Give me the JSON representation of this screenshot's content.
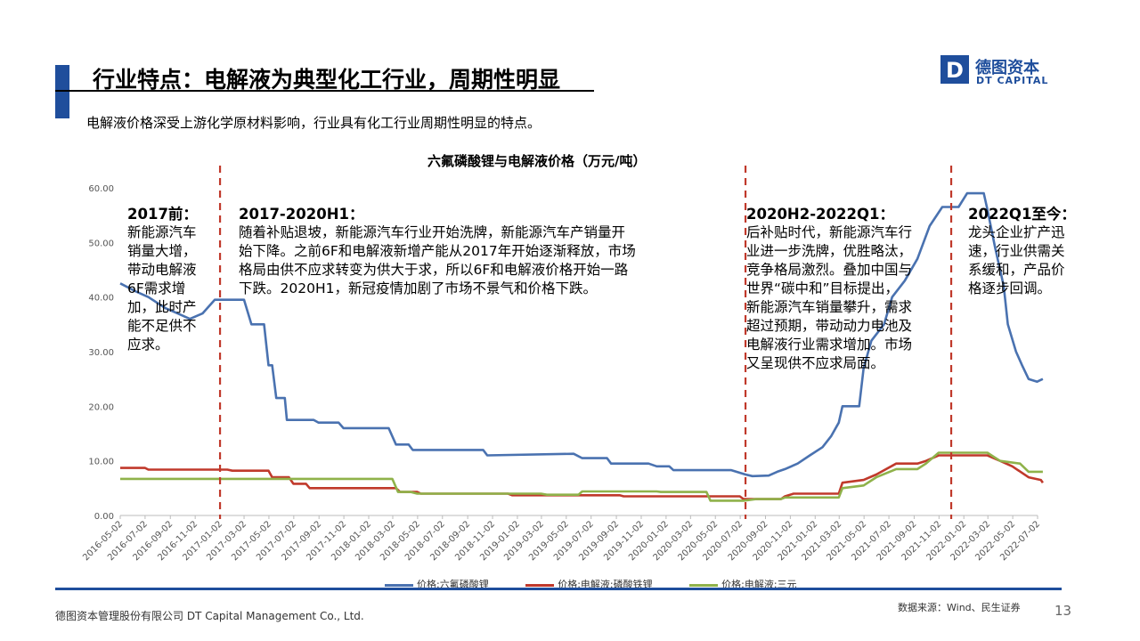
{
  "header": {
    "title": "行业特点：电解液为典型化工行业，周期性明显",
    "accent_color": "#1f4e9c"
  },
  "logo": {
    "mark_letter": "D",
    "name_cn": "德图资本",
    "name_en": "DT CAPITAL",
    "color": "#1f4e9c"
  },
  "subtitle": "电解液价格深受上游化学原材料影响，行业具有化工行业周期性明显的特点。",
  "annotations": [
    {
      "heading": "2017前：",
      "body": "新能源汽车\n销量大增，\n带动电解液\n6F需求增\n加，此时产\n能不足供不\n应求。"
    },
    {
      "heading": "2017-2020H1：",
      "body": "随着补贴退坡，新能源汽车行业开始洗牌，新能源汽车产销量开\n始下降。之前6F和电解液新增产能从2017年开始逐渐释放，市场\n格局由供不应求转变为供大于求，所以6F和电解液价格开始一路\n下跌。2020H1，新冠疫情加剧了市场不景气和价格下跌。"
    },
    {
      "heading": "2020H2-2022Q1：",
      "body": "后补贴时代，新能源汽车行\n业进一步洗牌，优胜略汰，\n竞争格局激烈。叠加中国与\n世界“碳中和”目标提出，\n新能源汽车销量攀升，需求\n超过预期，带动动力电池及\n电解液行业需求增加。市场\n又呈现供不应求局面。"
    },
    {
      "heading": "2022Q1至今：",
      "body": "龙头企业扩产迅\n速，行业供需关\n系缓和，产品价\n格逐步回调。"
    }
  ],
  "chart_data": {
    "type": "line",
    "title": "六氟磷酸锂与电解液价格（万元/吨）",
    "ylim": [
      0,
      60
    ],
    "y_ticks": [
      "0.00",
      "10.00",
      "20.00",
      "30.00",
      "40.00",
      "50.00",
      "60.00"
    ],
    "x_ticks": [
      "2016-05-02",
      "2016-07-02",
      "2016-09-02",
      "2016-11-02",
      "2017-01-02",
      "2017-03-02",
      "2017-05-02",
      "2017-07-02",
      "2017-09-02",
      "2017-11-02",
      "2018-01-02",
      "2018-03-02",
      "2018-05-02",
      "2018-07-02",
      "2018-09-02",
      "2018-11-02",
      "2019-01-02",
      "2019-03-02",
      "2019-05-02",
      "2019-07-02",
      "2019-09-02",
      "2019-11-02",
      "2020-01-02",
      "2020-03-02",
      "2020-05-02",
      "2020-07-02",
      "2020-09-02",
      "2020-11-02",
      "2021-01-02",
      "2021-03-02",
      "2021-05-02",
      "2021-07-02",
      "2021-09-02",
      "2021-11-02",
      "2022-01-02",
      "2022-03-02",
      "2022-05-02",
      "2022-07-02"
    ],
    "grid": false,
    "legend_position": "bottom",
    "divider_dates": [
      "2017-01-02",
      "2020-07-15",
      "2021-12-02"
    ],
    "divider_color": "#c0392b",
    "series": [
      {
        "name": "价格:六氟磷酸锂",
        "color": "#4a72b0",
        "points": [
          [
            "2016-05-02",
            42.5
          ],
          [
            "2016-06-10",
            41
          ],
          [
            "2016-07-10",
            40
          ],
          [
            "2016-08-20",
            38
          ],
          [
            "2016-09-20",
            37
          ],
          [
            "2016-10-20",
            36
          ],
          [
            "2016-11-20",
            37
          ],
          [
            "2016-12-20",
            39.5
          ],
          [
            "2017-03-02",
            39.5
          ],
          [
            "2017-03-20",
            35
          ],
          [
            "2017-04-20",
            35
          ],
          [
            "2017-05-01",
            27.5
          ],
          [
            "2017-05-10",
            27.5
          ],
          [
            "2017-05-20",
            21.5
          ],
          [
            "2017-06-10",
            21.5
          ],
          [
            "2017-06-15",
            17.5
          ],
          [
            "2017-08-20",
            17.5
          ],
          [
            "2017-09-01",
            17
          ],
          [
            "2017-10-20",
            17
          ],
          [
            "2017-11-01",
            16
          ],
          [
            "2018-02-20",
            16
          ],
          [
            "2018-03-10",
            13
          ],
          [
            "2018-04-10",
            13
          ],
          [
            "2018-04-20",
            12
          ],
          [
            "2018-10-10",
            12
          ],
          [
            "2018-10-20",
            11
          ],
          [
            "2019-05-20",
            11.3
          ],
          [
            "2019-06-10",
            10.5
          ],
          [
            "2019-08-10",
            10.5
          ],
          [
            "2019-08-20",
            9.5
          ],
          [
            "2019-11-20",
            9.5
          ],
          [
            "2019-12-10",
            9
          ],
          [
            "2020-01-10",
            9
          ],
          [
            "2020-01-20",
            8.3
          ],
          [
            "2020-06-10",
            8.3
          ],
          [
            "2020-07-15",
            7.5
          ],
          [
            "2020-08-01",
            7.2
          ],
          [
            "2020-09-10",
            7.3
          ],
          [
            "2020-10-01",
            8
          ],
          [
            "2020-10-20",
            8.5
          ],
          [
            "2020-11-20",
            9.5
          ],
          [
            "2020-12-20",
            11
          ],
          [
            "2021-01-20",
            12.5
          ],
          [
            "2021-02-10",
            14.5
          ],
          [
            "2021-03-01",
            17
          ],
          [
            "2021-03-10",
            20
          ],
          [
            "2021-04-20",
            20
          ],
          [
            "2021-05-01",
            27
          ],
          [
            "2021-05-20",
            32
          ],
          [
            "2021-06-20",
            35
          ],
          [
            "2021-07-10",
            40
          ],
          [
            "2021-08-10",
            43
          ],
          [
            "2021-09-10",
            47
          ],
          [
            "2021-10-10",
            53
          ],
          [
            "2021-11-10",
            56.5
          ],
          [
            "2021-12-20",
            56.5
          ],
          [
            "2022-01-10",
            59
          ],
          [
            "2022-02-20",
            59
          ],
          [
            "2022-03-01",
            56
          ],
          [
            "2022-03-20",
            49
          ],
          [
            "2022-04-10",
            42
          ],
          [
            "2022-04-20",
            35
          ],
          [
            "2022-05-10",
            30
          ],
          [
            "2022-05-25",
            27.5
          ],
          [
            "2022-06-10",
            25
          ],
          [
            "2022-07-01",
            24.5
          ],
          [
            "2022-07-15",
            25
          ]
        ]
      },
      {
        "name": "价格:电解液:磷酸铁锂",
        "color": "#c0392b",
        "points": [
          [
            "2016-05-02",
            8.7
          ],
          [
            "2016-07-02",
            8.7
          ],
          [
            "2016-07-10",
            8.4
          ],
          [
            "2017-01-20",
            8.4
          ],
          [
            "2017-02-01",
            8.2
          ],
          [
            "2017-05-01",
            8.2
          ],
          [
            "2017-05-10",
            7
          ],
          [
            "2017-06-20",
            7
          ],
          [
            "2017-07-01",
            5.8
          ],
          [
            "2017-08-01",
            5.8
          ],
          [
            "2017-08-10",
            5
          ],
          [
            "2018-03-10",
            5
          ],
          [
            "2018-03-20",
            4.3
          ],
          [
            "2018-05-01",
            4.3
          ],
          [
            "2018-05-10",
            4
          ],
          [
            "2018-12-10",
            4
          ],
          [
            "2018-12-20",
            3.7
          ],
          [
            "2019-09-10",
            3.7
          ],
          [
            "2019-09-20",
            3.5
          ],
          [
            "2020-07-01",
            3.5
          ],
          [
            "2020-07-10",
            3
          ],
          [
            "2020-10-10",
            3
          ],
          [
            "2020-10-20",
            3.5
          ],
          [
            "2020-11-10",
            4
          ],
          [
            "2021-03-01",
            4
          ],
          [
            "2021-03-10",
            6
          ],
          [
            "2021-05-01",
            6.5
          ],
          [
            "2021-06-01",
            7.5
          ],
          [
            "2021-07-20",
            9.5
          ],
          [
            "2021-09-10",
            9.5
          ],
          [
            "2021-10-01",
            10
          ],
          [
            "2021-11-01",
            11
          ],
          [
            "2022-03-01",
            11
          ],
          [
            "2022-04-01",
            10
          ],
          [
            "2022-05-01",
            9
          ],
          [
            "2022-06-10",
            7
          ],
          [
            "2022-07-10",
            6.5
          ],
          [
            "2022-07-15",
            6
          ]
        ]
      },
      {
        "name": "价格:电解液:三元",
        "color": "#8fb24a",
        "points": [
          [
            "2016-05-02",
            6.7
          ],
          [
            "2018-03-01",
            6.7
          ],
          [
            "2018-03-15",
            4.3
          ],
          [
            "2018-04-15",
            4.3
          ],
          [
            "2018-05-01",
            4
          ],
          [
            "2019-03-01",
            4
          ],
          [
            "2019-03-15",
            3.8
          ],
          [
            "2019-06-01",
            3.8
          ],
          [
            "2019-06-10",
            4.4
          ],
          [
            "2019-12-10",
            4.4
          ],
          [
            "2019-12-20",
            4.3
          ],
          [
            "2020-04-10",
            4.3
          ],
          [
            "2020-04-20",
            2.7
          ],
          [
            "2020-07-10",
            2.7
          ],
          [
            "2020-08-10",
            3
          ],
          [
            "2020-10-10",
            3
          ],
          [
            "2020-10-20",
            3.3
          ],
          [
            "2021-03-01",
            3.3
          ],
          [
            "2021-03-10",
            5
          ],
          [
            "2021-05-01",
            5.5
          ],
          [
            "2021-06-01",
            7
          ],
          [
            "2021-07-20",
            8.5
          ],
          [
            "2021-09-10",
            8.5
          ],
          [
            "2021-10-01",
            9.5
          ],
          [
            "2021-11-01",
            11.5
          ],
          [
            "2022-03-01",
            11.5
          ],
          [
            "2022-04-01",
            10
          ],
          [
            "2022-05-20",
            9.5
          ],
          [
            "2022-06-10",
            8
          ],
          [
            "2022-07-15",
            8
          ]
        ]
      }
    ]
  },
  "footer": {
    "company": "德图资本管理股份有限公司  DT Capital  Management  Co., Ltd.",
    "source": "数据来源：Wind、民生证券",
    "page_number": "13",
    "line_color": "#1f4e9c"
  }
}
